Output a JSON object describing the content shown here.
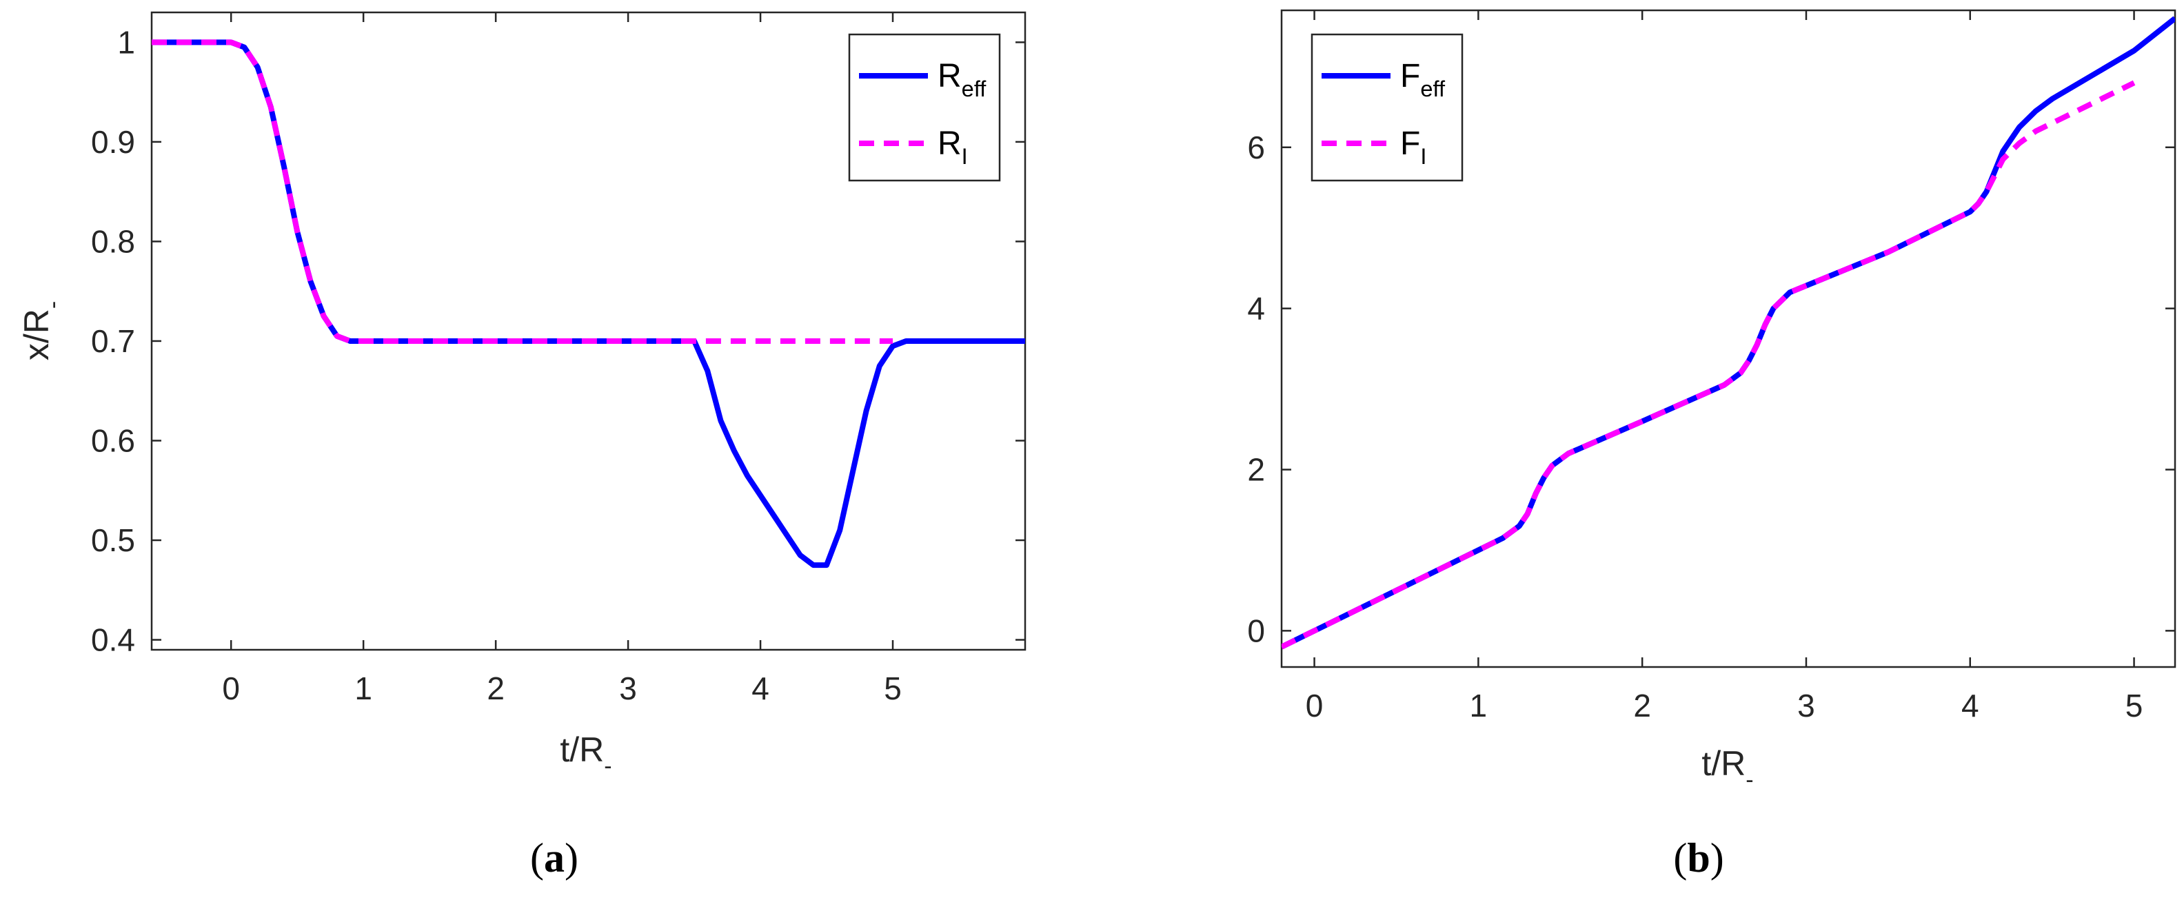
{
  "chart_data": [
    {
      "type": "line",
      "panel_label": "(a)",
      "panel_letter": "a",
      "xlabel": "t/R",
      "xlabel_sub": "-",
      "ylabel": "x/R",
      "ylabel_sub": "-",
      "xlim": [
        -0.6,
        6.0
      ],
      "ylim": [
        0.39,
        1.03
      ],
      "xticks": [
        0,
        1,
        2,
        3,
        4,
        5
      ],
      "yticks": [
        0.4,
        0.5,
        0.6,
        0.7,
        0.8,
        0.9,
        1
      ],
      "grid": false,
      "legend_position": "top-right",
      "series": [
        {
          "name": "R",
          "name_sub": "eff",
          "color": "#0000ff",
          "style": "solid",
          "x": [
            -0.6,
            0.0,
            0.1,
            0.2,
            0.3,
            0.4,
            0.5,
            0.6,
            0.7,
            0.8,
            0.9,
            1.0,
            2.0,
            3.0,
            3.5,
            3.6,
            3.7,
            3.8,
            3.9,
            4.0,
            4.1,
            4.2,
            4.3,
            4.4,
            4.5,
            4.6,
            4.7,
            4.8,
            4.9,
            5.0,
            5.1,
            5.2,
            6.0
          ],
          "y": [
            1.0,
            1.0,
            0.995,
            0.975,
            0.935,
            0.875,
            0.81,
            0.76,
            0.725,
            0.705,
            0.7,
            0.7,
            0.7,
            0.7,
            0.7,
            0.67,
            0.62,
            0.59,
            0.565,
            0.545,
            0.525,
            0.505,
            0.485,
            0.475,
            0.475,
            0.51,
            0.57,
            0.63,
            0.675,
            0.695,
            0.7,
            0.7,
            0.7
          ]
        },
        {
          "name": "R",
          "name_sub": "I",
          "color": "#ff00ff",
          "style": "dashed",
          "x": [
            -0.6,
            0.0,
            0.1,
            0.2,
            0.3,
            0.4,
            0.5,
            0.6,
            0.7,
            0.8,
            0.9,
            1.0,
            2.0,
            3.0,
            4.0,
            5.0
          ],
          "y": [
            1.0,
            1.0,
            0.995,
            0.975,
            0.935,
            0.875,
            0.81,
            0.76,
            0.725,
            0.705,
            0.7,
            0.7,
            0.7,
            0.7,
            0.7,
            0.7
          ]
        }
      ]
    },
    {
      "type": "line",
      "panel_label": "(b)",
      "panel_letter": "b",
      "xlabel": "t/R",
      "xlabel_sub": "-",
      "ylabel": "",
      "ylabel_sub": "",
      "xlim": [
        -0.2,
        5.25
      ],
      "ylim": [
        -0.45,
        7.7
      ],
      "xticks": [
        0,
        1,
        2,
        3,
        4,
        5
      ],
      "yticks": [
        0,
        2,
        4,
        6
      ],
      "grid": false,
      "legend_position": "top-left",
      "series": [
        {
          "name": "F",
          "name_sub": "eff",
          "color": "#0000ff",
          "style": "solid",
          "x": [
            -0.2,
            0.0,
            0.5,
            1.0,
            1.15,
            1.25,
            1.3,
            1.35,
            1.4,
            1.45,
            1.55,
            2.0,
            2.5,
            2.6,
            2.65,
            2.7,
            2.75,
            2.8,
            2.9,
            3.5,
            4.0,
            4.05,
            4.1,
            4.15,
            4.2,
            4.3,
            4.4,
            4.5,
            5.0,
            5.25
          ],
          "y": [
            -0.2,
            0.0,
            0.5,
            1.0,
            1.15,
            1.3,
            1.45,
            1.7,
            1.9,
            2.05,
            2.2,
            2.6,
            3.05,
            3.2,
            3.35,
            3.55,
            3.8,
            4.0,
            4.2,
            4.7,
            5.2,
            5.3,
            5.45,
            5.7,
            5.95,
            6.25,
            6.45,
            6.6,
            7.2,
            7.6
          ]
        },
        {
          "name": "F",
          "name_sub": "I",
          "color": "#ff00ff",
          "style": "dashed",
          "x": [
            -0.2,
            0.0,
            0.5,
            1.0,
            1.15,
            1.25,
            1.3,
            1.35,
            1.4,
            1.45,
            1.55,
            2.0,
            2.5,
            2.6,
            2.65,
            2.7,
            2.75,
            2.8,
            2.9,
            3.5,
            4.0,
            4.05,
            4.1,
            4.15,
            4.2,
            4.3,
            4.4,
            4.5,
            5.0
          ],
          "y": [
            -0.2,
            0.0,
            0.5,
            1.0,
            1.15,
            1.3,
            1.45,
            1.7,
            1.9,
            2.05,
            2.2,
            2.6,
            3.05,
            3.2,
            3.35,
            3.55,
            3.8,
            4.0,
            4.2,
            4.7,
            5.2,
            5.3,
            5.45,
            5.65,
            5.85,
            6.05,
            6.2,
            6.3,
            6.8
          ]
        }
      ]
    }
  ]
}
